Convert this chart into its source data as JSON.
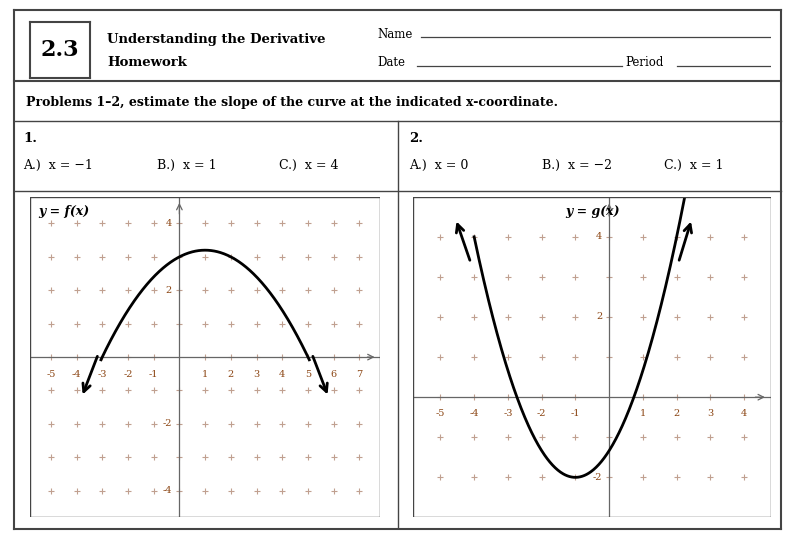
{
  "title_number": "2.3",
  "problems_text": "Problems 1–2, estimate the slope of the curve at the indicated x-coordinate.",
  "prob1_label": "1.",
  "prob1_a": "A.)  x = −1",
  "prob1_b": "B.)  x = 1",
  "prob1_c": "C.)  x = 4",
  "prob2_label": "2.",
  "prob2_a": "A.)  x = 0",
  "prob2_b": "B.)  x = −2",
  "prob2_c": "C.)  x = 1",
  "graph1_label": "y = f(x)",
  "graph2_label": "y = g(x)",
  "graph1_xlim": [
    -5.8,
    7.8
  ],
  "graph1_ylim": [
    -4.8,
    4.8
  ],
  "graph2_xlim": [
    -5.8,
    4.8
  ],
  "graph2_ylim": [
    -3.0,
    5.0
  ],
  "background_color": "#ffffff",
  "grid_color": "#c0a090",
  "axis_color": "#666666",
  "curve_color": "#000000",
  "text_color": "#000000",
  "label_color": "#8B4513",
  "border_color": "#444444"
}
